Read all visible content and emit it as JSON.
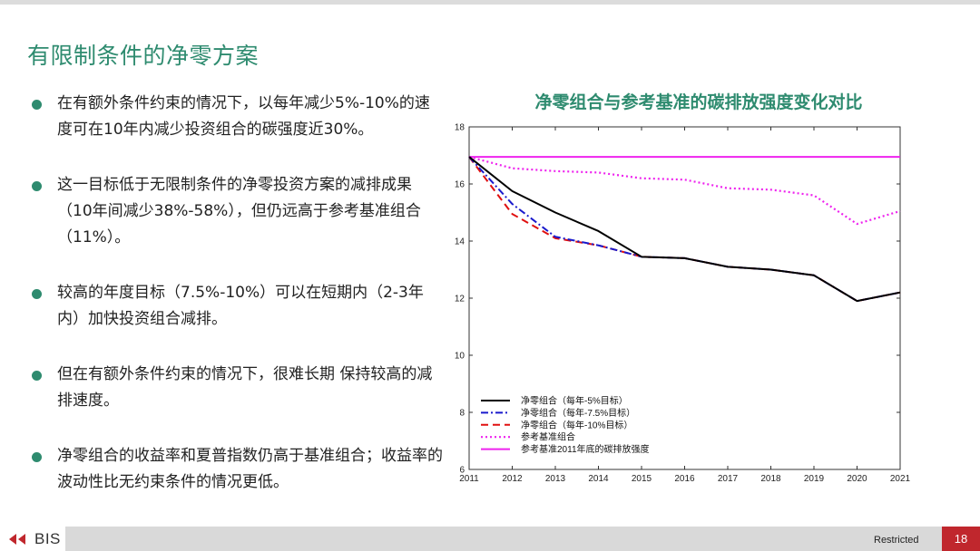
{
  "slide": {
    "title": "有限制条件的净零方案",
    "bullets": [
      "在有额外条件约束的情况下，以每年减少5%-10%的速度可在10年内减少投资组合的碳强度近30%。",
      "这一目标低于无限制条件的净零投资方案的减排成果（10年间减少38%-58%），但仍远高于参考基准组合（11%）。",
      "较高的年度目标（7.5%-10%）可以在短期内（2-3年内）加快投资组合减排。",
      "但在有额外条件约束的情况下，很难长期 保持较高的减排速度。",
      "净零组合的收益率和夏普指数仍高于基准组合；收益率的波动性比无约束条件的情况更低。"
    ]
  },
  "footer": {
    "logo_text": "BIS",
    "restricted": "Restricted",
    "page_number": "18"
  },
  "colors": {
    "accent": "#2e8b6f",
    "page_badge": "#c0272d"
  },
  "chart_data": {
    "type": "line",
    "title": "净零组合与参考基准的碳排放强度变化对比",
    "xlabel": "",
    "ylabel": "",
    "x": [
      2011,
      2012,
      2013,
      2014,
      2015,
      2016,
      2017,
      2018,
      2019,
      2020,
      2021
    ],
    "xlim": [
      2011,
      2021
    ],
    "ylim": [
      6,
      18
    ],
    "yticks": [
      6,
      8,
      10,
      12,
      14,
      16,
      18
    ],
    "xticks": [
      2011,
      2012,
      2013,
      2014,
      2015,
      2016,
      2017,
      2018,
      2019,
      2020,
      2021
    ],
    "grid": false,
    "legend_position": "bottom-left",
    "series": [
      {
        "name": "净零组合（每年-5%目标）",
        "color": "#000000",
        "style": "solid",
        "values": [
          16.95,
          15.75,
          15.0,
          14.35,
          13.45,
          13.4,
          13.1,
          13.0,
          12.8,
          11.9,
          12.2
        ]
      },
      {
        "name": "净零组合（每年-7.5%目标）",
        "color": "#1a1acc",
        "style": "dashdot",
        "values": [
          16.95,
          15.3,
          14.15,
          13.85,
          13.45,
          13.4,
          13.1,
          13.0,
          12.8,
          11.9,
          12.2
        ]
      },
      {
        "name": "净零组合（每年-10%目标）",
        "color": "#e01010",
        "style": "dashed",
        "values": [
          16.95,
          14.95,
          14.1,
          13.85,
          13.45,
          13.4,
          13.1,
          13.0,
          12.8,
          11.9,
          12.2
        ]
      },
      {
        "name": "参考基准组合",
        "color": "#ee22ee",
        "style": "dotted",
        "values": [
          16.95,
          16.55,
          16.45,
          16.4,
          16.2,
          16.15,
          15.85,
          15.8,
          15.6,
          14.6,
          15.05
        ]
      },
      {
        "name": "参考基准2011年底的碳排放强度",
        "color": "#ee22ee",
        "style": "solid",
        "values": [
          16.95,
          16.95,
          16.95,
          16.95,
          16.95,
          16.95,
          16.95,
          16.95,
          16.95,
          16.95,
          16.95
        ]
      }
    ]
  }
}
